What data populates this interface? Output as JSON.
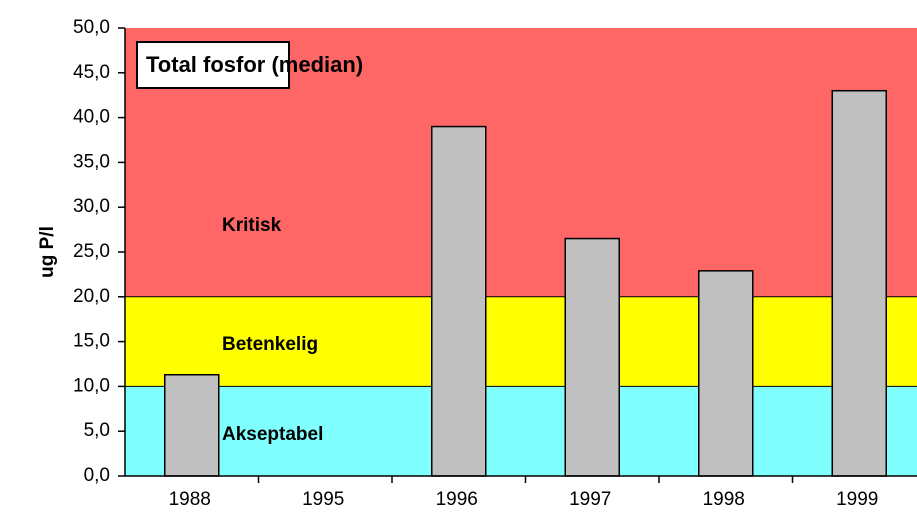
{
  "chart_data": {
    "type": "bar",
    "title": "Total fosfor (median)",
    "y_label": "ug P/l",
    "categories": [
      "1988",
      "1995",
      "1996",
      "1997",
      "1998",
      "1999"
    ],
    "values": [
      11.3,
      null,
      39.0,
      26.5,
      22.9,
      43.0
    ],
    "color": "#c0c0c0",
    "bands": [
      {
        "name": "Akseptabel",
        "from": 0,
        "to": 10,
        "color": "#80ffff"
      },
      {
        "name": "Betenkelig",
        "from": 10,
        "to": 20,
        "color": "#ffff00"
      },
      {
        "name": "Kritisk",
        "from": 20,
        "to": 50,
        "color": "#ff6666"
      }
    ],
    "ylim": [
      0,
      50
    ],
    "yticks": [
      {
        "value": 0,
        "label": "0,0"
      },
      {
        "value": 5,
        "label": "5,0"
      },
      {
        "value": 10,
        "label": "10,0"
      },
      {
        "value": 15,
        "label": "15,0"
      },
      {
        "value": 20,
        "label": "20,0"
      },
      {
        "value": 25,
        "label": "25,0"
      },
      {
        "value": 30,
        "label": "30,0"
      },
      {
        "value": 35,
        "label": "35,0"
      },
      {
        "value": 40,
        "label": "40,0"
      },
      {
        "value": 45,
        "label": "45,0"
      },
      {
        "value": 50,
        "label": "50,0"
      }
    ]
  }
}
